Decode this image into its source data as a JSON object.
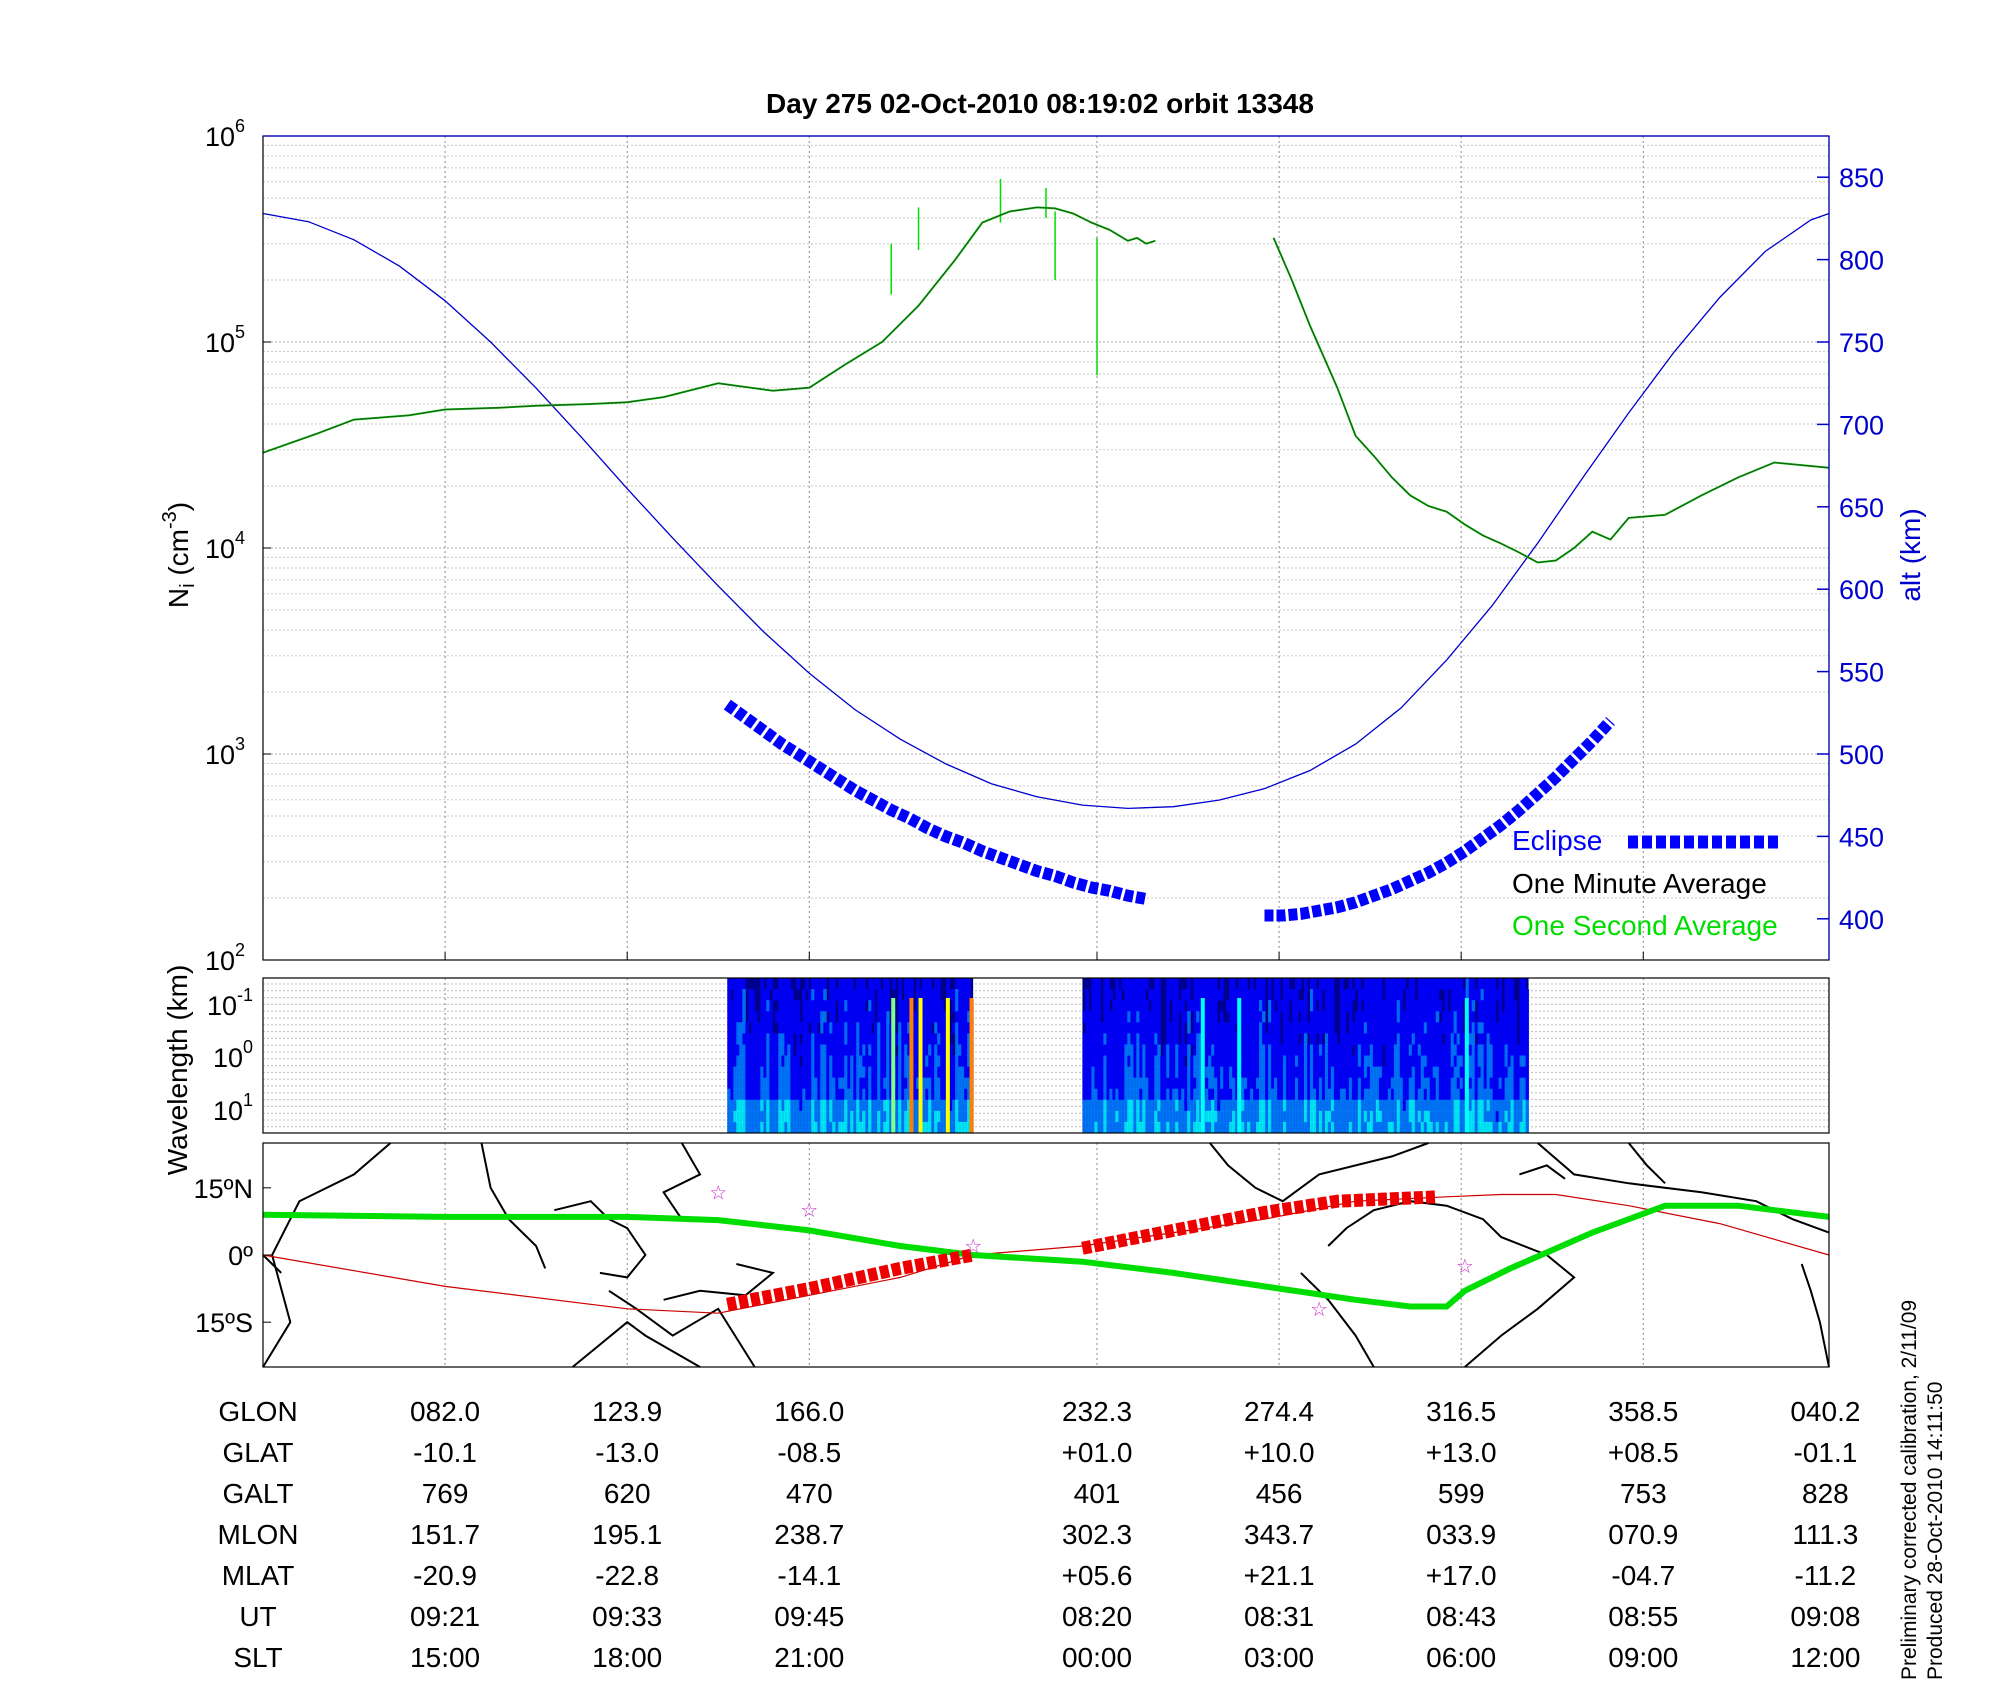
{
  "title": "Day 275  02-Oct-2010 08:19:02   orbit 13348",
  "chart_data": [
    {
      "type": "line",
      "name": "density-altitude",
      "ylabel_left": "N_i (cm^-3)",
      "ylabel_right": "alt (km)",
      "yscale_left": "log",
      "ylim_left": [
        100,
        1000000
      ],
      "ylim_right": [
        375,
        875
      ],
      "left_ticks": [
        "10^2",
        "10^3",
        "10^4",
        "10^5",
        "10^6"
      ],
      "right_ticks": [
        400,
        450,
        500,
        550,
        600,
        650,
        700,
        750,
        800,
        850
      ],
      "x_range": [
        0,
        8.6
      ],
      "grid": true,
      "legend": {
        "position": "bottom-right",
        "items": [
          "Eclipse",
          "One Minute Average",
          "One Second Average"
        ]
      },
      "colors": {
        "altitude": "#0000cc",
        "eclipse": "#0000ff",
        "minute": "#000000",
        "second": "#00dd00"
      },
      "series": [
        {
          "name": "One Minute Average",
          "segments": [
            {
              "x": [
                0,
                0.3,
                0.5,
                0.8,
                1.0,
                1.3,
                1.5,
                1.8,
                2.0,
                2.2,
                2.5,
                2.8,
                3.0,
                3.2,
                3.4,
                3.6,
                3.8,
                3.95,
                4.1,
                4.25,
                4.35,
                4.45,
                4.55,
                4.65,
                4.75,
                4.8,
                4.85,
                4.9
              ],
              "y": [
                29000,
                36000,
                42000,
                44000,
                47000,
                48000,
                49000,
                50000,
                51000,
                54000,
                63000,
                58000,
                60000,
                78000,
                100000,
                150000,
                250000,
                380000,
                430000,
                450000,
                445000,
                420000,
                380000,
                350000,
                310000,
                320000,
                300000,
                310000
              ]
            },
            {
              "x": [
                5.55,
                5.65,
                5.75,
                5.9,
                6.0,
                6.1,
                6.2,
                6.3,
                6.4,
                6.5,
                6.6,
                6.7,
                6.8,
                6.9,
                7.0,
                7.1,
                7.2,
                7.3,
                7.4,
                7.5,
                7.7,
                7.9,
                8.1,
                8.3,
                8.6
              ],
              "y": [
                320000,
                200000,
                120000,
                60000,
                35000,
                28000,
                22000,
                18000,
                16000,
                15000,
                13000,
                11500,
                10500,
                9500,
                8500,
                8700,
                10000,
                12000,
                11000,
                14000,
                14500,
                18000,
                22000,
                26000,
                24500
              ]
            }
          ]
        },
        {
          "name": "One Second Average",
          "segments": [
            {
              "x": [
                0,
                0.3,
                0.5,
                0.8,
                1.0,
                1.3,
                1.5,
                1.8,
                2.0,
                2.2,
                2.5,
                2.8,
                3.0,
                3.2,
                3.4,
                3.6,
                3.8,
                3.95,
                4.1,
                4.25,
                4.35,
                4.45,
                4.55,
                4.65,
                4.75,
                4.8,
                4.85,
                4.9
              ],
              "y": [
                29000,
                36000,
                42000,
                44000,
                47000,
                48000,
                49000,
                50000,
                51000,
                54000,
                63000,
                58000,
                60000,
                78000,
                100000,
                150000,
                250000,
                380000,
                430000,
                450000,
                445000,
                420000,
                380000,
                350000,
                310000,
                320000,
                300000,
                310000
              ]
            },
            {
              "x": [
                5.55,
                5.65,
                5.75,
                5.9,
                6.0,
                6.1,
                6.2,
                6.3,
                6.4,
                6.5,
                6.6,
                6.7,
                6.8,
                6.9,
                7.0,
                7.1,
                7.2,
                7.3,
                7.4,
                7.5,
                7.7,
                7.9,
                8.1,
                8.3,
                8.6
              ],
              "y": [
                320000,
                200000,
                120000,
                60000,
                35000,
                28000,
                22000,
                18000,
                16000,
                15000,
                13000,
                11500,
                10500,
                9500,
                8500,
                8700,
                10000,
                12000,
                11000,
                14000,
                14500,
                18000,
                22000,
                26000,
                24500
              ]
            }
          ]
        },
        {
          "name": "altitude",
          "axis": "right",
          "x": [
            0,
            0.25,
            0.5,
            0.75,
            1.0,
            1.25,
            1.5,
            1.75,
            2.0,
            2.25,
            2.5,
            2.75,
            3.0,
            3.25,
            3.5,
            3.75,
            4.0,
            4.25,
            4.5,
            4.75,
            5.0,
            5.25,
            5.5,
            5.75,
            6.0,
            6.25,
            6.5,
            6.75,
            7.0,
            7.25,
            7.5,
            7.75,
            8.0,
            8.25,
            8.5,
            8.6
          ],
          "y": [
            828,
            823,
            812,
            796,
            775,
            750,
            722,
            692,
            661,
            631,
            602,
            574,
            549,
            527,
            509,
            494,
            482,
            474,
            469,
            467,
            468,
            472,
            479,
            490,
            506,
            528,
            557,
            590,
            628,
            668,
            707,
            744,
            777,
            805,
            824,
            828
          ]
        },
        {
          "name": "Eclipse",
          "axis": "right",
          "segments": [
            {
              "x": [
                2.55,
                2.65,
                2.75,
                2.85,
                2.95,
                3.05,
                3.15,
                3.25,
                3.35,
                3.45,
                3.55,
                3.65,
                3.75,
                3.85,
                3.95,
                4.05,
                4.15,
                4.25,
                4.35,
                4.45,
                4.55,
                4.65,
                4.75,
                4.85
              ],
              "y": [
                530,
                522,
                514,
                506,
                499,
                492,
                485,
                478,
                472,
                466,
                461,
                455,
                450,
                446,
                441,
                437,
                433,
                429,
                426,
                422,
                419,
                417,
                414,
                412
              ]
            },
            {
              "x": [
                5.5,
                5.6,
                5.7,
                5.8,
                5.9,
                6.0,
                6.1,
                6.2,
                6.3,
                6.4,
                6.5,
                6.6,
                6.7,
                6.8,
                6.9,
                7.0,
                7.1,
                7.2,
                7.3,
                7.4
              ],
              "y": [
                402,
                402,
                403,
                405,
                407,
                410,
                414,
                418,
                423,
                428,
                434,
                441,
                449,
                457,
                466,
                476,
                486,
                497,
                508,
                520
              ]
            }
          ]
        }
      ]
    },
    {
      "type": "heatmap",
      "name": "spectrogram",
      "ylabel": "Wavelength (km)",
      "yscale": "log",
      "y_ticks": [
        "10^-1",
        "10^0",
        "10^1"
      ],
      "x_range": [
        0,
        8.6
      ],
      "data_intervals": [
        [
          2.55,
          3.9
        ],
        [
          4.5,
          6.95
        ]
      ],
      "colormap": [
        "#00008f",
        "#0000ff",
        "#0080ff",
        "#00ffff",
        "#80ff80",
        "#ffff00",
        "#ff8000",
        "#ff0000"
      ]
    },
    {
      "type": "line",
      "name": "ground-track-map",
      "ylabel_ticks": [
        "15ºN",
        "0º",
        "15ºS"
      ],
      "ylim": [
        -25,
        25
      ],
      "colors": {
        "track": "#00dd00",
        "magnetic_equator": "#cc0000",
        "eclipse": "#ee0000",
        "stars": "#cc33cc",
        "coast": "#000000"
      },
      "series": [
        {
          "name": "track",
          "x": [
            0,
            1,
            2,
            2.5,
            3,
            3.5,
            3.9,
            4.5,
            5,
            5.5,
            6,
            6.3,
            6.5,
            6.6,
            6.85,
            7.3,
            7.7,
            8.1,
            8.6
          ],
          "y": [
            9,
            8.5,
            8.5,
            7.8,
            5.5,
            2,
            0,
            -1.5,
            -4,
            -7,
            -10,
            -11.5,
            -11.5,
            -8,
            -3,
            5,
            11,
            11,
            8.5
          ]
        },
        {
          "name": "magnetic_equator",
          "x": [
            0,
            1,
            2,
            2.5,
            3,
            3.5,
            3.9,
            4.5,
            5,
            5.5,
            6,
            6.5,
            6.8,
            7.1,
            7.5,
            8,
            8.6
          ],
          "y": [
            0,
            -7,
            -12,
            -13,
            -9,
            -5,
            0,
            2,
            5,
            8,
            12,
            13,
            13.5,
            13.5,
            11,
            7,
            0
          ]
        },
        {
          "name": "eclipse_track",
          "segments": [
            {
              "x": [
                2.55,
                3.0,
                3.5,
                3.9
              ],
              "y": [
                -11,
                -7.5,
                -3,
                0
              ]
            },
            {
              "x": [
                4.5,
                5.0,
                5.5,
                5.9,
                6.45
              ],
              "y": [
                1.5,
                5.5,
                9.5,
                12,
                13
              ]
            }
          ]
        },
        {
          "name": "stars",
          "x": [
            2.5,
            3.0,
            3.9,
            5.8,
            6.6
          ],
          "y": [
            14,
            10,
            2,
            -12,
            -2.5
          ]
        }
      ]
    }
  ],
  "table": {
    "rows": [
      {
        "label": "GLON",
        "cells": [
          "082.0",
          "123.9",
          "166.0",
          "232.3",
          "274.4",
          "316.5",
          "358.5",
          "040.2"
        ]
      },
      {
        "label": "GLAT",
        "cells": [
          "-10.1",
          "-13.0",
          "-08.5",
          "+01.0",
          "+10.0",
          "+13.0",
          "+08.5",
          "-01.1"
        ]
      },
      {
        "label": "GALT",
        "cells": [
          "769",
          "620",
          "470",
          "401",
          "456",
          "599",
          "753",
          "828"
        ]
      },
      {
        "label": "MLON",
        "cells": [
          "151.7",
          "195.1",
          "238.7",
          "302.3",
          "343.7",
          "033.9",
          "070.9",
          "111.3"
        ]
      },
      {
        "label": "MLAT",
        "cells": [
          "-20.9",
          "-22.8",
          "-14.1",
          "+05.6",
          "+21.1",
          "+17.0",
          "-04.7",
          "-11.2"
        ]
      },
      {
        "label": "UT",
        "cells": [
          "09:21",
          "09:33",
          "09:45",
          "08:20",
          "08:31",
          "08:43",
          "08:55",
          "09:08"
        ]
      },
      {
        "label": "SLT",
        "cells": [
          "15:00",
          "18:00",
          "21:00",
          "00:00",
          "03:00",
          "06:00",
          "09:00",
          "12:00"
        ]
      }
    ],
    "column_x": [
      1,
      2,
      3,
      4.58,
      5.58,
      6.58,
      7.58,
      8.58
    ]
  },
  "footnotes": {
    "line1": "Preliminary corrected calibration, 2/11/09",
    "line2": "Produced 28-Oct-2010 14:11:50"
  }
}
